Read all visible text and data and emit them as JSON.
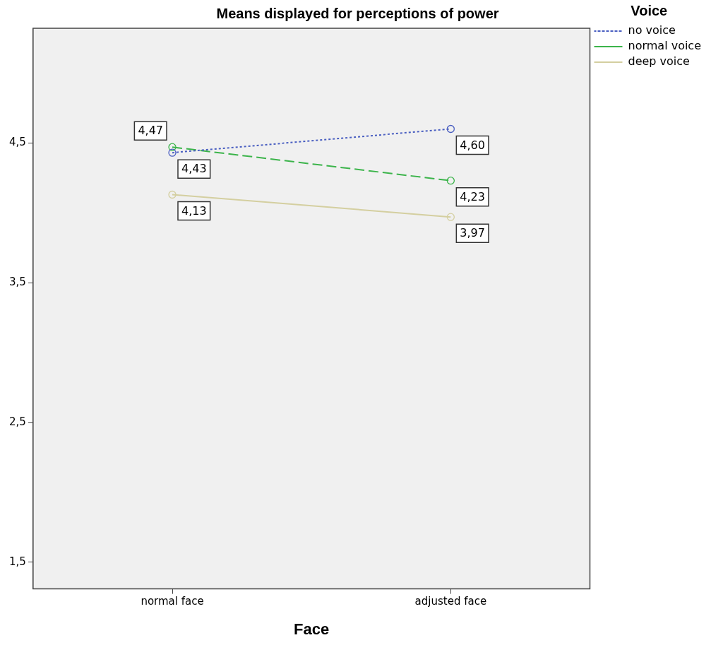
{
  "chart_data": {
    "type": "line",
    "title": "Means displayed for perceptions of power",
    "xlabel": "Face",
    "legend_title": "Voice",
    "categories": [
      "normal face",
      "adjusted face"
    ],
    "series": [
      {
        "name": "no voice",
        "color": "#4a5fc1",
        "values": [
          4.43,
          4.6
        ],
        "value_labels": [
          "4,43",
          "4,60"
        ],
        "line_style": "dotted"
      },
      {
        "name": "normal voice",
        "color": "#3cb44b",
        "values": [
          4.47,
          4.23
        ],
        "value_labels": [
          "4,47",
          "4,23"
        ],
        "line_style": "dashed"
      },
      {
        "name": "deep voice",
        "color": "#d4cfa0",
        "values": [
          4.13,
          3.97
        ],
        "value_labels": [
          "4,13",
          "3,97"
        ],
        "line_style": "solid"
      }
    ],
    "ylim": [
      1.31,
      5.32
    ],
    "yticks": [
      {
        "value": 1.5,
        "label": "1,5"
      },
      {
        "value": 2.5,
        "label": "2,5"
      },
      {
        "value": 3.5,
        "label": "3,5"
      },
      {
        "value": 4.5,
        "label": "4,5"
      }
    ],
    "grid": false,
    "legend": "top right",
    "marker": "circle"
  }
}
